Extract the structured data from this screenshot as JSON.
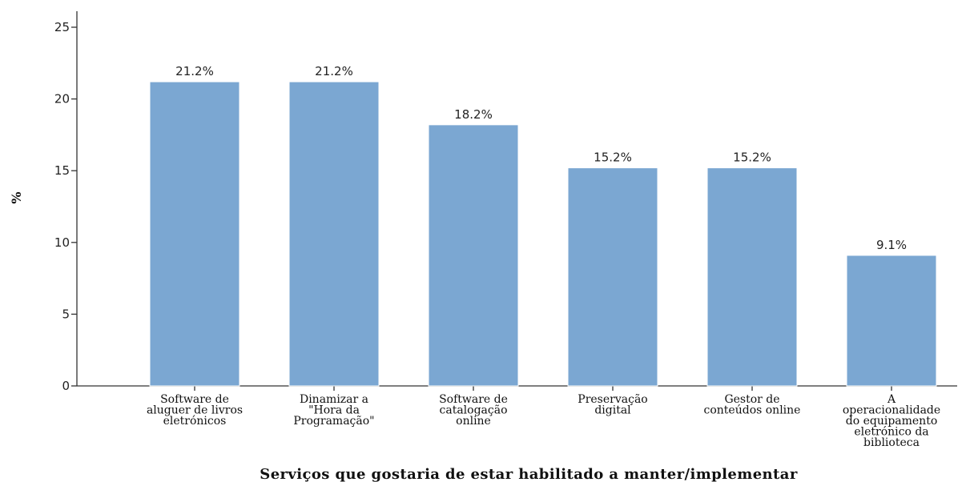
{
  "chart_data": {
    "type": "bar",
    "categories": [
      [
        "Software de",
        "aluguer de livros",
        "eletrónicos"
      ],
      [
        "Dinamizar a",
        "\"Hora da",
        "Programação\""
      ],
      [
        "Software de",
        "catalogação",
        "online"
      ],
      [
        "Preservação",
        "digital"
      ],
      [
        "Gestor de",
        "conteúdos online"
      ],
      [
        "A",
        "operacionalidade",
        "do equipamento",
        "eletrónico da",
        "biblioteca"
      ]
    ],
    "values": [
      21.2,
      21.2,
      18.2,
      15.2,
      15.2,
      9.1
    ],
    "data_labels": [
      "21.2%",
      "21.2%",
      "18.2%",
      "15.2%",
      "15.2%",
      "9.1%"
    ],
    "yticks": [
      0,
      5,
      10,
      15,
      20,
      25
    ],
    "ylim": [
      0,
      25
    ],
    "ylabel": "%",
    "xlabel": "Serviços que gostaria de estar habilitado a manter/implementar",
    "grid": false,
    "bar_color": "#7ba7d2"
  }
}
